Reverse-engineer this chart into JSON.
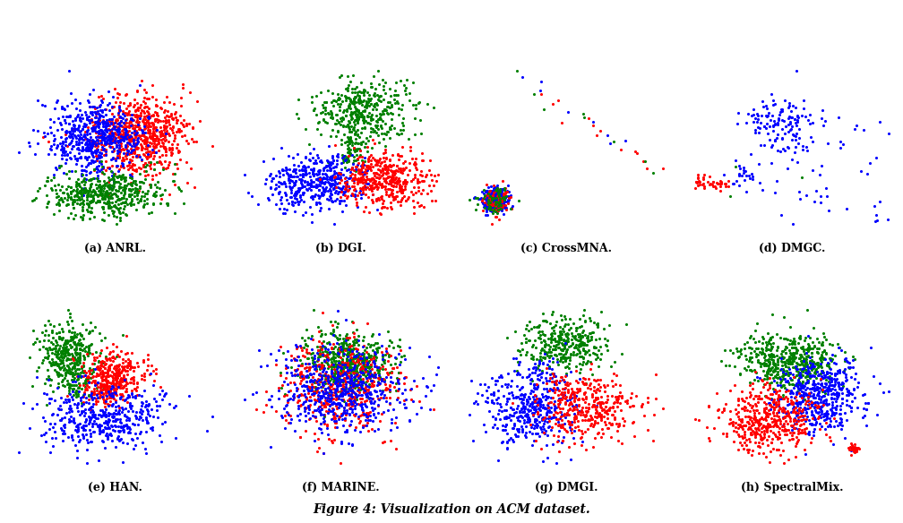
{
  "title": "Figure 4: Visualization on ACM dataset.",
  "title_fontsize": 10,
  "subplots": [
    {
      "label": "(a) ANRL.",
      "name": "ANRL"
    },
    {
      "label": "(b) DGI.",
      "name": "DGI"
    },
    {
      "label": "(c) CrossMNA.",
      "name": "CrossMNA"
    },
    {
      "label": "(d) DMGC.",
      "name": "DMGC"
    },
    {
      "label": "(e) HAN.",
      "name": "HAN"
    },
    {
      "label": "(f) MARINE.",
      "name": "MARINE"
    },
    {
      "label": "(g) DMGI.",
      "name": "DMGI"
    },
    {
      "label": "(h) SpectralMix.",
      "name": "SpectralMix"
    }
  ],
  "colors": [
    "red",
    "blue",
    "green"
  ],
  "point_size": 5,
  "background_color": "white",
  "label_fontsize": 9,
  "label_family": "serif"
}
